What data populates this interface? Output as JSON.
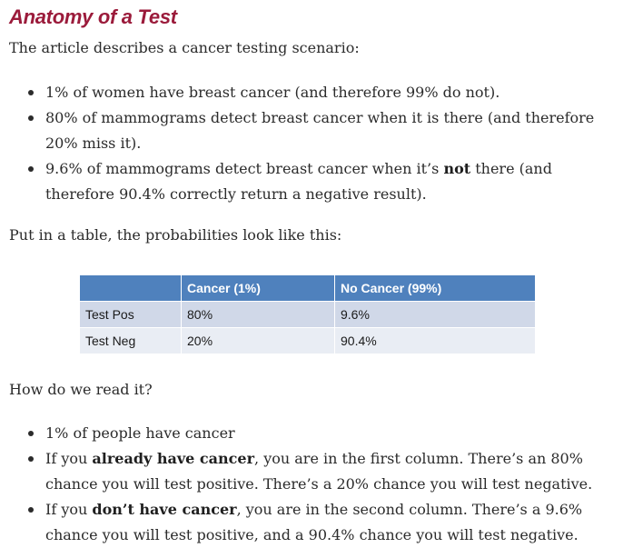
{
  "title": "Anatomy of a Test",
  "intro": "The article describes a cancer testing scenario:",
  "scenario": [
    {
      "pre": "1% of women have breast cancer (and therefore 99% do not).",
      "bold": "",
      "post": ""
    },
    {
      "pre": "80% of mammograms detect breast cancer when it is there (and therefore 20% miss it).",
      "bold": "",
      "post": ""
    },
    {
      "pre": "9.6% of mammograms detect breast cancer when it’s ",
      "bold": "not",
      "post": " there (and therefore 90.4% correctly return a negative result)."
    }
  ],
  "table_intro": "Put in a table, the probabilities look like this:",
  "table": {
    "headers": [
      "",
      "Cancer (1%)",
      "No Cancer (99%)"
    ],
    "rows": [
      [
        "Test Pos",
        "80%",
        "9.6%"
      ],
      [
        "Test Neg",
        "20%",
        "90.4%"
      ]
    ]
  },
  "read_question": "How do we read it?",
  "reading": [
    {
      "pre": "1% of people have cancer",
      "bold": "",
      "post": ""
    },
    {
      "pre": "If you ",
      "bold": "already have cancer",
      "post": ", you are in the first column. There’s an 80% chance you will test positive. There’s a 20% chance you will test negative."
    },
    {
      "pre": "If you ",
      "bold": "don’t have cancer",
      "post": ", you are in the second column. There’s a 9.6% chance you will test positive, and a 90.4% chance you will test negative."
    }
  ]
}
